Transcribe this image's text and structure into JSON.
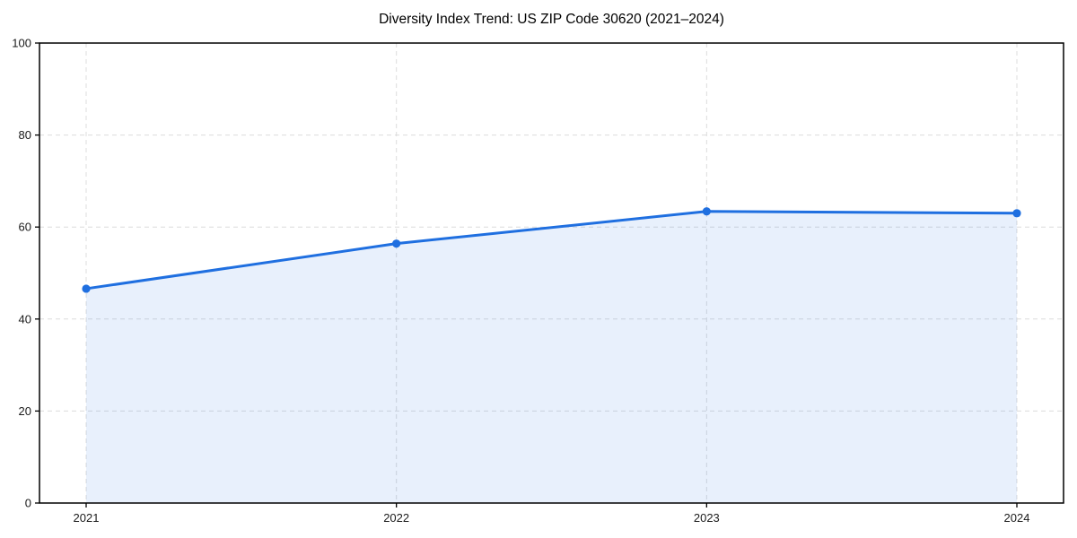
{
  "chart_data": {
    "type": "area",
    "title": "Diversity Index Trend: US ZIP Code 30620 (2021–2024)",
    "categories": [
      "2021",
      "2022",
      "2023",
      "2024"
    ],
    "series": [
      {
        "name": "Diversity Index",
        "values": [
          46.6,
          56.4,
          63.4,
          63.0
        ]
      }
    ],
    "xlabel": "",
    "ylabel": "",
    "ylim": [
      0,
      100
    ],
    "yticks": [
      0,
      20,
      40,
      60,
      80,
      100
    ],
    "grid": true,
    "grid_style": "dashed",
    "legend": null,
    "colors": {
      "line": "#1f6fe0",
      "marker": "#1f6fe0",
      "fill": "rgba(31, 111, 224, 0.10)",
      "grid": "#dcdcdc",
      "axis": "#000000",
      "tick_label": "#1a1a1a",
      "title": "#000000",
      "background": "#ffffff"
    }
  }
}
